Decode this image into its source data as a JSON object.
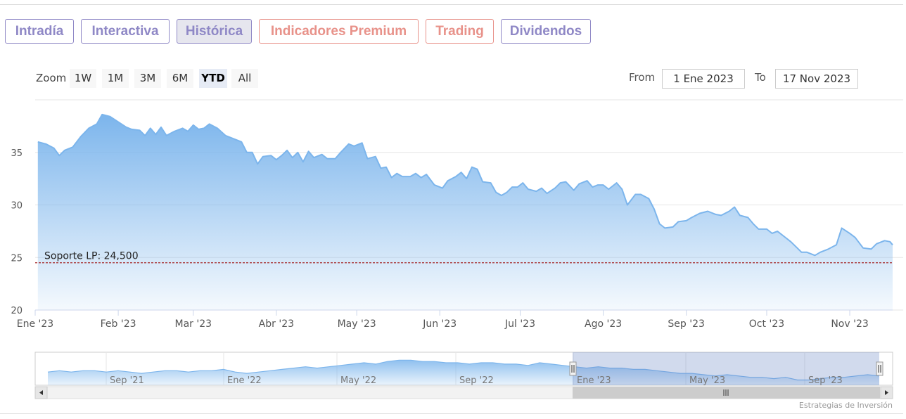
{
  "tabs": [
    {
      "label": "Intradía",
      "style": "purple",
      "active": false
    },
    {
      "label": "Interactiva",
      "style": "purple",
      "active": false
    },
    {
      "label": "Histórica",
      "style": "purple",
      "active": true
    },
    {
      "label": "Indicadores Premium",
      "style": "red",
      "active": false
    },
    {
      "label": "Trading",
      "style": "red",
      "active": false
    },
    {
      "label": "Dividendos",
      "style": "purple",
      "active": false
    }
  ],
  "range_selector": {
    "zoom_label": "Zoom",
    "buttons": [
      "1W",
      "1M",
      "3M",
      "6M",
      "YTD",
      "All"
    ],
    "selected": "YTD",
    "from_label": "From",
    "from_value": "1 Ene 2023",
    "to_label": "To",
    "to_value": "17 Nov 2023"
  },
  "colors": {
    "line": "#7cb5ec",
    "support_line": "#a52a2a",
    "tab_purple": "#8f88c6",
    "tab_red": "#e8928a"
  },
  "credits": "Estrategias de Inversión",
  "chart_data": [
    {
      "type": "area",
      "title": "",
      "xlabel": "",
      "ylabel": "",
      "x_range": [
        "2023-01-01",
        "2023-11-17"
      ],
      "ylim": [
        20,
        40
      ],
      "yticks": [
        20,
        25,
        30,
        35
      ],
      "xtick_labels": [
        {
          "date": "2023-01-01",
          "label": "Ene '23"
        },
        {
          "date": "2023-02-01",
          "label": "Feb '23"
        },
        {
          "date": "2023-03-01",
          "label": "Mar '23"
        },
        {
          "date": "2023-04-01",
          "label": "Abr '23"
        },
        {
          "date": "2023-05-01",
          "label": "May '23"
        },
        {
          "date": "2023-06-01",
          "label": "Jun '23"
        },
        {
          "date": "2023-07-01",
          "label": "Jul '23"
        },
        {
          "date": "2023-08-01",
          "label": "Ago '23"
        },
        {
          "date": "2023-09-01",
          "label": "Sep '23"
        },
        {
          "date": "2023-10-01",
          "label": "Oct '23"
        },
        {
          "date": "2023-11-01",
          "label": "Nov '23"
        }
      ],
      "grid": true,
      "plot_band_line": {
        "value": 24.5,
        "label": "Soporte LP: 24,500",
        "style": "dashed"
      },
      "series": [
        {
          "values": [
            [
              "2023-01-02",
              36.0
            ],
            [
              "2023-01-05",
              35.8
            ],
            [
              "2023-01-08",
              35.4
            ],
            [
              "2023-01-10",
              34.7
            ],
            [
              "2023-01-12",
              35.2
            ],
            [
              "2023-01-15",
              35.5
            ],
            [
              "2023-01-18",
              36.5
            ],
            [
              "2023-01-21",
              37.3
            ],
            [
              "2023-01-24",
              37.7
            ],
            [
              "2023-01-26",
              38.6
            ],
            [
              "2023-01-29",
              38.4
            ],
            [
              "2023-02-01",
              37.9
            ],
            [
              "2023-02-04",
              37.4
            ],
            [
              "2023-02-06",
              37.2
            ],
            [
              "2023-02-09",
              37.1
            ],
            [
              "2023-02-11",
              36.6
            ],
            [
              "2023-02-13",
              37.3
            ],
            [
              "2023-02-15",
              36.7
            ],
            [
              "2023-02-17",
              37.4
            ],
            [
              "2023-02-19",
              36.6
            ],
            [
              "2023-02-22",
              37.0
            ],
            [
              "2023-02-25",
              37.3
            ],
            [
              "2023-02-27",
              37.0
            ],
            [
              "2023-03-01",
              37.6
            ],
            [
              "2023-03-03",
              37.2
            ],
            [
              "2023-03-05",
              37.3
            ],
            [
              "2023-03-07",
              37.7
            ],
            [
              "2023-03-10",
              37.3
            ],
            [
              "2023-03-13",
              36.6
            ],
            [
              "2023-03-16",
              36.3
            ],
            [
              "2023-03-19",
              36.0
            ],
            [
              "2023-03-21",
              35.0
            ],
            [
              "2023-03-23",
              35.0
            ],
            [
              "2023-03-25",
              33.9
            ],
            [
              "2023-03-27",
              34.6
            ],
            [
              "2023-03-30",
              34.7
            ],
            [
              "2023-04-01",
              34.3
            ],
            [
              "2023-04-03",
              34.7
            ],
            [
              "2023-04-05",
              35.2
            ],
            [
              "2023-04-07",
              34.5
            ],
            [
              "2023-04-09",
              35.0
            ],
            [
              "2023-04-11",
              34.1
            ],
            [
              "2023-04-13",
              35.1
            ],
            [
              "2023-04-15",
              34.5
            ],
            [
              "2023-04-18",
              34.8
            ],
            [
              "2023-04-20",
              34.4
            ],
            [
              "2023-04-23",
              34.4
            ],
            [
              "2023-04-25",
              35.0
            ],
            [
              "2023-04-28",
              35.8
            ],
            [
              "2023-04-30",
              35.6
            ],
            [
              "2023-05-03",
              35.9
            ],
            [
              "2023-05-05",
              34.4
            ],
            [
              "2023-05-08",
              34.6
            ],
            [
              "2023-05-10",
              33.5
            ],
            [
              "2023-05-12",
              33.6
            ],
            [
              "2023-05-14",
              32.6
            ],
            [
              "2023-05-16",
              33.0
            ],
            [
              "2023-05-18",
              32.7
            ],
            [
              "2023-05-21",
              32.7
            ],
            [
              "2023-05-23",
              33.0
            ],
            [
              "2023-05-25",
              32.6
            ],
            [
              "2023-05-27",
              32.9
            ],
            [
              "2023-05-30",
              31.9
            ],
            [
              "2023-06-02",
              31.6
            ],
            [
              "2023-06-04",
              32.3
            ],
            [
              "2023-06-07",
              32.7
            ],
            [
              "2023-06-09",
              33.1
            ],
            [
              "2023-06-11",
              32.5
            ],
            [
              "2023-06-13",
              33.6
            ],
            [
              "2023-06-15",
              33.4
            ],
            [
              "2023-06-17",
              32.2
            ],
            [
              "2023-06-20",
              32.1
            ],
            [
              "2023-06-22",
              31.2
            ],
            [
              "2023-06-24",
              30.9
            ],
            [
              "2023-06-26",
              31.2
            ],
            [
              "2023-06-28",
              31.7
            ],
            [
              "2023-06-30",
              31.7
            ],
            [
              "2023-07-02",
              32.1
            ],
            [
              "2023-07-04",
              31.5
            ],
            [
              "2023-07-07",
              31.3
            ],
            [
              "2023-07-09",
              31.6
            ],
            [
              "2023-07-11",
              31.1
            ],
            [
              "2023-07-14",
              31.6
            ],
            [
              "2023-07-16",
              32.1
            ],
            [
              "2023-07-18",
              32.2
            ],
            [
              "2023-07-21",
              31.4
            ],
            [
              "2023-07-23",
              32.0
            ],
            [
              "2023-07-26",
              32.3
            ],
            [
              "2023-07-28",
              31.7
            ],
            [
              "2023-07-30",
              31.9
            ],
            [
              "2023-08-01",
              31.9
            ],
            [
              "2023-08-03",
              31.5
            ],
            [
              "2023-08-06",
              32.1
            ],
            [
              "2023-08-08",
              31.5
            ],
            [
              "2023-08-10",
              30.0
            ],
            [
              "2023-08-13",
              31.0
            ],
            [
              "2023-08-15",
              31.0
            ],
            [
              "2023-08-18",
              30.6
            ],
            [
              "2023-08-20",
              29.6
            ],
            [
              "2023-08-22",
              28.2
            ],
            [
              "2023-08-24",
              27.8
            ],
            [
              "2023-08-27",
              27.9
            ],
            [
              "2023-08-29",
              28.4
            ],
            [
              "2023-09-01",
              28.5
            ],
            [
              "2023-09-03",
              28.8
            ],
            [
              "2023-09-06",
              29.2
            ],
            [
              "2023-09-09",
              29.4
            ],
            [
              "2023-09-12",
              29.1
            ],
            [
              "2023-09-14",
              29.0
            ],
            [
              "2023-09-17",
              29.4
            ],
            [
              "2023-09-19",
              29.8
            ],
            [
              "2023-09-21",
              29.0
            ],
            [
              "2023-09-24",
              28.8
            ],
            [
              "2023-09-26",
              28.2
            ],
            [
              "2023-09-28",
              27.7
            ],
            [
              "2023-10-01",
              27.7
            ],
            [
              "2023-10-03",
              27.3
            ],
            [
              "2023-10-05",
              27.5
            ],
            [
              "2023-10-07",
              27.1
            ],
            [
              "2023-10-10",
              26.5
            ],
            [
              "2023-10-12",
              26.0
            ],
            [
              "2023-10-14",
              25.5
            ],
            [
              "2023-10-16",
              25.5
            ],
            [
              "2023-10-19",
              25.2
            ],
            [
              "2023-10-21",
              25.5
            ],
            [
              "2023-10-24",
              25.8
            ],
            [
              "2023-10-27",
              26.2
            ],
            [
              "2023-10-29",
              27.8
            ],
            [
              "2023-11-01",
              27.3
            ],
            [
              "2023-11-03",
              26.9
            ],
            [
              "2023-11-06",
              25.9
            ],
            [
              "2023-11-09",
              25.8
            ],
            [
              "2023-11-11",
              26.3
            ],
            [
              "2023-11-14",
              26.6
            ],
            [
              "2023-11-16",
              26.5
            ],
            [
              "2023-11-17",
              26.2
            ]
          ]
        }
      ]
    },
    {
      "type": "area",
      "role": "navigator",
      "xtick_labels": [
        "Sep '21",
        "Ene '22",
        "May '22",
        "Sep '22",
        "Ene '23",
        "May '23",
        "Sep '23"
      ],
      "selection": {
        "from": "Ene '23",
        "to": "Nov '23"
      },
      "series": [
        {
          "values": [
            30,
            31,
            30,
            31,
            31,
            30,
            31,
            30,
            29,
            30,
            31,
            31,
            30,
            31,
            31,
            32,
            30,
            29,
            30,
            31,
            32,
            33,
            34,
            33,
            34,
            35,
            36,
            37,
            36,
            38,
            39,
            39,
            38,
            38,
            37,
            37,
            36,
            37,
            37,
            36,
            36,
            35,
            37,
            36,
            35,
            34,
            33,
            34,
            33,
            33,
            32,
            32,
            31,
            30,
            29,
            29,
            28,
            27,
            28,
            27,
            26,
            26,
            25,
            26,
            24,
            24,
            25,
            26,
            26,
            27,
            28,
            27
          ]
        }
      ]
    }
  ]
}
